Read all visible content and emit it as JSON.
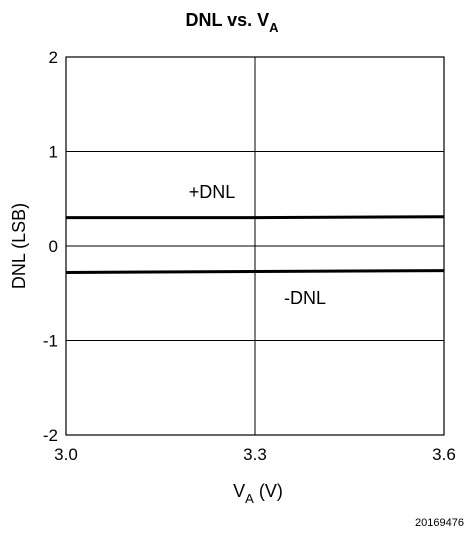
{
  "chart_data": {
    "type": "line",
    "title": {
      "main": "DNL vs. V",
      "sub": "A"
    },
    "xlabel": {
      "main": "V",
      "sub": "A",
      "rest": " (V)"
    },
    "ylabel": "DNL (LSB)",
    "x_ticks": [
      "3.0",
      "3.3",
      "3.6"
    ],
    "y_ticks": [
      "2",
      "1",
      "0",
      "-1",
      "-2"
    ],
    "xlim": [
      3.0,
      3.6
    ],
    "ylim": [
      -2,
      2
    ],
    "grid": true,
    "series": [
      {
        "name": "+DNL",
        "x": [
          3.0,
          3.3,
          3.6
        ],
        "y": [
          0.3,
          0.3,
          0.31
        ]
      },
      {
        "name": "-DNL",
        "x": [
          3.0,
          3.3,
          3.6
        ],
        "y": [
          -0.28,
          -0.27,
          -0.26
        ]
      }
    ],
    "annotations": [
      "+DNL",
      "-DNL"
    ],
    "line_color": "#000000"
  },
  "figure_id": "20169476"
}
